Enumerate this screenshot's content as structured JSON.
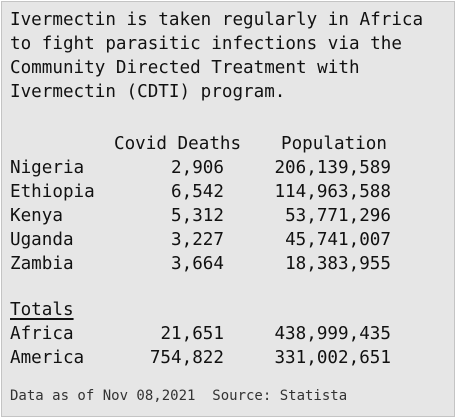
{
  "intro_lines": [
    "Ivermectin is taken regularly in Africa",
    "to fight parasitic infections via the",
    "Community Directed Treatment with",
    "Ivermectin (CDTI) program."
  ],
  "table": {
    "headers": [
      "Covid Deaths",
      "Population"
    ],
    "rows": [
      {
        "name": "Nigeria",
        "deaths": "2,906",
        "population": "206,139,589"
      },
      {
        "name": "Ethiopia",
        "deaths": "6,542",
        "population": "114,963,588"
      },
      {
        "name": "Kenya",
        "deaths": "5,312",
        "population": "53,771,296"
      },
      {
        "name": "Uganda",
        "deaths": "3,227",
        "population": "45,741,007"
      },
      {
        "name": "Zambia",
        "deaths": "3,664",
        "population": "18,383,955"
      }
    ],
    "totals_label": "Totals",
    "totals": [
      {
        "name": "Africa",
        "deaths": "21,651",
        "population": "438,999,435"
      },
      {
        "name": "America",
        "deaths": "754,822",
        "population": "331,002,651"
      }
    ]
  },
  "footer": "Data as of Nov 08,2021  Source: Statista"
}
